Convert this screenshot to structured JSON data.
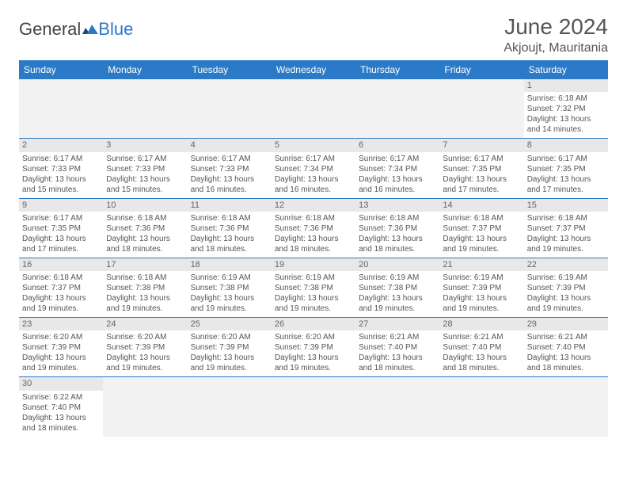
{
  "logo": {
    "part1": "General",
    "part2": "Blue"
  },
  "title": "June 2024",
  "location": "Akjoujt, Mauritania",
  "weekdays": [
    "Sunday",
    "Monday",
    "Tuesday",
    "Wednesday",
    "Thursday",
    "Friday",
    "Saturday"
  ],
  "colors": {
    "header_bg": "#2b7ac7",
    "header_text": "#ffffff",
    "daynum_bg": "#e8e8e8",
    "empty_bg": "#f2f2f2",
    "border": "#2b7ac7",
    "text": "#555555"
  },
  "grid": [
    [
      null,
      null,
      null,
      null,
      null,
      null,
      {
        "n": "1",
        "sr": "6:18 AM",
        "ss": "7:32 PM",
        "dl": "13 hours and 14 minutes."
      }
    ],
    [
      {
        "n": "2",
        "sr": "6:17 AM",
        "ss": "7:33 PM",
        "dl": "13 hours and 15 minutes."
      },
      {
        "n": "3",
        "sr": "6:17 AM",
        "ss": "7:33 PM",
        "dl": "13 hours and 15 minutes."
      },
      {
        "n": "4",
        "sr": "6:17 AM",
        "ss": "7:33 PM",
        "dl": "13 hours and 16 minutes."
      },
      {
        "n": "5",
        "sr": "6:17 AM",
        "ss": "7:34 PM",
        "dl": "13 hours and 16 minutes."
      },
      {
        "n": "6",
        "sr": "6:17 AM",
        "ss": "7:34 PM",
        "dl": "13 hours and 16 minutes."
      },
      {
        "n": "7",
        "sr": "6:17 AM",
        "ss": "7:35 PM",
        "dl": "13 hours and 17 minutes."
      },
      {
        "n": "8",
        "sr": "6:17 AM",
        "ss": "7:35 PM",
        "dl": "13 hours and 17 minutes."
      }
    ],
    [
      {
        "n": "9",
        "sr": "6:17 AM",
        "ss": "7:35 PM",
        "dl": "13 hours and 17 minutes."
      },
      {
        "n": "10",
        "sr": "6:18 AM",
        "ss": "7:36 PM",
        "dl": "13 hours and 18 minutes."
      },
      {
        "n": "11",
        "sr": "6:18 AM",
        "ss": "7:36 PM",
        "dl": "13 hours and 18 minutes."
      },
      {
        "n": "12",
        "sr": "6:18 AM",
        "ss": "7:36 PM",
        "dl": "13 hours and 18 minutes."
      },
      {
        "n": "13",
        "sr": "6:18 AM",
        "ss": "7:36 PM",
        "dl": "13 hours and 18 minutes."
      },
      {
        "n": "14",
        "sr": "6:18 AM",
        "ss": "7:37 PM",
        "dl": "13 hours and 19 minutes."
      },
      {
        "n": "15",
        "sr": "6:18 AM",
        "ss": "7:37 PM",
        "dl": "13 hours and 19 minutes."
      }
    ],
    [
      {
        "n": "16",
        "sr": "6:18 AM",
        "ss": "7:37 PM",
        "dl": "13 hours and 19 minutes."
      },
      {
        "n": "17",
        "sr": "6:18 AM",
        "ss": "7:38 PM",
        "dl": "13 hours and 19 minutes."
      },
      {
        "n": "18",
        "sr": "6:19 AM",
        "ss": "7:38 PM",
        "dl": "13 hours and 19 minutes."
      },
      {
        "n": "19",
        "sr": "6:19 AM",
        "ss": "7:38 PM",
        "dl": "13 hours and 19 minutes."
      },
      {
        "n": "20",
        "sr": "6:19 AM",
        "ss": "7:38 PM",
        "dl": "13 hours and 19 minutes."
      },
      {
        "n": "21",
        "sr": "6:19 AM",
        "ss": "7:39 PM",
        "dl": "13 hours and 19 minutes."
      },
      {
        "n": "22",
        "sr": "6:19 AM",
        "ss": "7:39 PM",
        "dl": "13 hours and 19 minutes."
      }
    ],
    [
      {
        "n": "23",
        "sr": "6:20 AM",
        "ss": "7:39 PM",
        "dl": "13 hours and 19 minutes."
      },
      {
        "n": "24",
        "sr": "6:20 AM",
        "ss": "7:39 PM",
        "dl": "13 hours and 19 minutes."
      },
      {
        "n": "25",
        "sr": "6:20 AM",
        "ss": "7:39 PM",
        "dl": "13 hours and 19 minutes."
      },
      {
        "n": "26",
        "sr": "6:20 AM",
        "ss": "7:39 PM",
        "dl": "13 hours and 19 minutes."
      },
      {
        "n": "27",
        "sr": "6:21 AM",
        "ss": "7:40 PM",
        "dl": "13 hours and 18 minutes."
      },
      {
        "n": "28",
        "sr": "6:21 AM",
        "ss": "7:40 PM",
        "dl": "13 hours and 18 minutes."
      },
      {
        "n": "29",
        "sr": "6:21 AM",
        "ss": "7:40 PM",
        "dl": "13 hours and 18 minutes."
      }
    ],
    [
      {
        "n": "30",
        "sr": "6:22 AM",
        "ss": "7:40 PM",
        "dl": "13 hours and 18 minutes."
      },
      null,
      null,
      null,
      null,
      null,
      null
    ]
  ],
  "labels": {
    "sunrise": "Sunrise:",
    "sunset": "Sunset:",
    "daylight": "Daylight:"
  }
}
